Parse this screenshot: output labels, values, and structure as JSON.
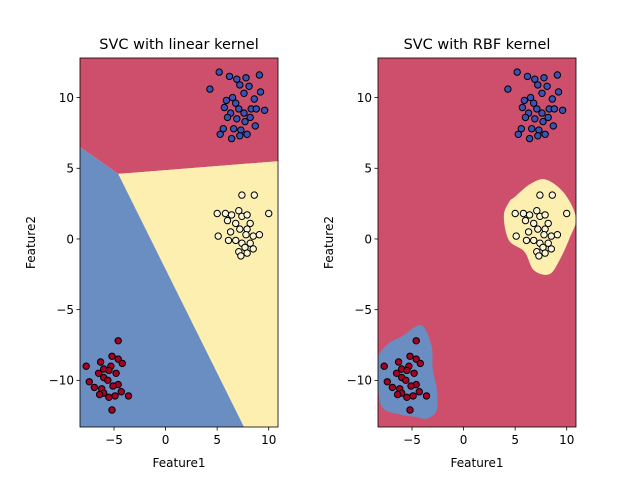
{
  "chart_data": [
    {
      "type": "scatter",
      "title": "SVC with linear kernel",
      "xlabel": "Feature1",
      "ylabel": "Feature2",
      "xlim": [
        -8.3,
        10.9
      ],
      "ylim": [
        -13.3,
        12.8
      ],
      "xticks": [
        -5,
        0,
        5,
        10
      ],
      "yticks": [
        10,
        5,
        0,
        -5,
        -10
      ],
      "xtick_labels": [
        "−5",
        "0",
        "5",
        "10"
      ],
      "ytick_labels": [
        "10",
        "5",
        "0",
        "−5",
        "−10"
      ],
      "regions": [
        {
          "class": "red",
          "polygon": [
            [
              -8.3,
              12.8
            ],
            [
              10.9,
              12.8
            ],
            [
              10.9,
              5.5
            ],
            [
              -4.6,
              4.6
            ],
            [
              -8.3,
              6.5
            ]
          ]
        },
        {
          "class": "yellow",
          "polygon": [
            [
              -4.6,
              4.6
            ],
            [
              10.9,
              5.5
            ],
            [
              10.9,
              -13.3
            ],
            [
              7.6,
              -13.3
            ]
          ]
        },
        {
          "class": "blue",
          "polygon": [
            [
              -8.3,
              6.5
            ],
            [
              -4.6,
              4.6
            ],
            [
              7.6,
              -13.3
            ],
            [
              -8.3,
              -13.3
            ]
          ]
        }
      ],
      "series": [
        {
          "class": "blue",
          "points": [
            [
              5.2,
              11.8
            ],
            [
              6.2,
              11.5
            ],
            [
              6.9,
              11.3
            ],
            [
              7.8,
              11.4
            ],
            [
              9.1,
              11.6
            ],
            [
              4.3,
              10.6
            ],
            [
              7.2,
              10.9
            ],
            [
              8.1,
              10.8
            ],
            [
              9.2,
              10.4
            ],
            [
              6.5,
              10.0
            ],
            [
              7.6,
              10.3
            ],
            [
              8.6,
              9.9
            ],
            [
              6.8,
              9.6
            ],
            [
              7.1,
              9.2
            ],
            [
              5.7,
              9.3
            ],
            [
              6.3,
              8.9
            ],
            [
              7.6,
              8.9
            ],
            [
              8.3,
              9.2
            ],
            [
              8.8,
              9.2
            ],
            [
              9.6,
              9.1
            ],
            [
              6.0,
              8.6
            ],
            [
              6.9,
              8.5
            ],
            [
              7.7,
              8.3
            ],
            [
              8.2,
              8.6
            ],
            [
              5.6,
              7.8
            ],
            [
              6.6,
              7.8
            ],
            [
              7.3,
              7.7
            ],
            [
              7.9,
              7.4
            ],
            [
              5.3,
              7.4
            ],
            [
              6.4,
              7.1
            ],
            [
              7.2,
              7.3
            ],
            [
              5.9,
              9.8
            ],
            [
              8.7,
              8.0
            ]
          ]
        },
        {
          "class": "yellow",
          "points": [
            [
              7.4,
              3.1
            ],
            [
              8.6,
              3.1
            ],
            [
              5.0,
              1.8
            ],
            [
              5.8,
              1.8
            ],
            [
              6.4,
              1.7
            ],
            [
              7.1,
              2.0
            ],
            [
              7.4,
              1.6
            ],
            [
              6.0,
              1.3
            ],
            [
              7.9,
              1.7
            ],
            [
              10.0,
              1.8
            ],
            [
              6.8,
              1.1
            ],
            [
              8.2,
              1.1
            ],
            [
              7.9,
              0.7
            ],
            [
              6.3,
              0.5
            ],
            [
              7.2,
              0.7
            ],
            [
              7.8,
              0.3
            ],
            [
              8.5,
              0.2
            ],
            [
              9.1,
              0.3
            ],
            [
              5.1,
              0.2
            ],
            [
              6.1,
              -0.1
            ],
            [
              6.8,
              -0.1
            ],
            [
              7.4,
              -0.3
            ],
            [
              7.7,
              -0.6
            ],
            [
              8.2,
              -0.3
            ],
            [
              7.1,
              -0.9
            ],
            [
              7.3,
              -1.2
            ],
            [
              7.9,
              -1.0
            ],
            [
              8.5,
              -0.7
            ]
          ]
        },
        {
          "class": "red",
          "points": [
            [
              -4.6,
              -7.2
            ],
            [
              -5.2,
              -8.3
            ],
            [
              -4.6,
              -8.5
            ],
            [
              -6.3,
              -8.7
            ],
            [
              -4.2,
              -8.8
            ],
            [
              -5.3,
              -9.0
            ],
            [
              -7.7,
              -9.0
            ],
            [
              -6.0,
              -9.2
            ],
            [
              -5.5,
              -9.3
            ],
            [
              -4.8,
              -9.5
            ],
            [
              -6.5,
              -9.5
            ],
            [
              -6.0,
              -9.8
            ],
            [
              -7.4,
              -10.1
            ],
            [
              -5.6,
              -10.0
            ],
            [
              -4.6,
              -10.3
            ],
            [
              -6.9,
              -10.5
            ],
            [
              -6.2,
              -10.6
            ],
            [
              -5.1,
              -10.4
            ],
            [
              -6.0,
              -10.9
            ],
            [
              -6.4,
              -11.0
            ],
            [
              -4.3,
              -10.8
            ],
            [
              -5.5,
              -11.2
            ],
            [
              -4.9,
              -11.1
            ],
            [
              -3.6,
              -11.1
            ],
            [
              -5.2,
              -12.1
            ]
          ]
        }
      ]
    },
    {
      "type": "scatter",
      "title": "SVC with RBF kernel",
      "xlabel": "Feature1",
      "ylabel": "Feature2",
      "xlim": [
        -8.3,
        10.9
      ],
      "ylim": [
        -13.3,
        12.8
      ],
      "xticks": [
        -5,
        0,
        5,
        10
      ],
      "yticks": [
        10,
        5,
        0,
        -5,
        -10
      ],
      "xtick_labels": [
        "−5",
        "0",
        "5",
        "10"
      ],
      "ytick_labels": [
        "10",
        "5",
        "0",
        "−5",
        "−10"
      ],
      "regions": [
        {
          "class": "red",
          "background": true
        },
        {
          "class": "yellow",
          "polygon": [
            [
              5.0,
              3.0
            ],
            [
              6.5,
              3.9
            ],
            [
              8.0,
              4.2
            ],
            [
              9.8,
              3.2
            ],
            [
              10.9,
              1.5
            ],
            [
              10.3,
              0.1
            ],
            [
              9.3,
              -1.5
            ],
            [
              8.3,
              -2.5
            ],
            [
              6.8,
              -2.2
            ],
            [
              5.9,
              -0.9
            ],
            [
              4.4,
              -0.1
            ],
            [
              3.9,
              1.6
            ],
            [
              4.4,
              2.6
            ]
          ]
        },
        {
          "class": "blue",
          "polygon": [
            [
              -6.0,
              -6.9
            ],
            [
              -4.1,
              -6.1
            ],
            [
              -3.1,
              -7.6
            ],
            [
              -3.0,
              -9.2
            ],
            [
              -2.6,
              -10.6
            ],
            [
              -2.6,
              -12.1
            ],
            [
              -3.5,
              -12.7
            ],
            [
              -4.6,
              -12.6
            ],
            [
              -6.3,
              -12.4
            ],
            [
              -7.9,
              -11.9
            ],
            [
              -8.3,
              -10.3
            ],
            [
              -8.3,
              -8.4
            ],
            [
              -7.3,
              -7.4
            ]
          ]
        }
      ],
      "series": [
        {
          "class": "blue",
          "points": [
            [
              5.2,
              11.8
            ],
            [
              6.2,
              11.5
            ],
            [
              6.9,
              11.3
            ],
            [
              7.8,
              11.4
            ],
            [
              9.1,
              11.6
            ],
            [
              4.3,
              10.6
            ],
            [
              7.2,
              10.9
            ],
            [
              8.1,
              10.8
            ],
            [
              9.2,
              10.4
            ],
            [
              6.5,
              10.0
            ],
            [
              7.6,
              10.3
            ],
            [
              8.6,
              9.9
            ],
            [
              6.8,
              9.6
            ],
            [
              7.1,
              9.2
            ],
            [
              5.7,
              9.3
            ],
            [
              6.3,
              8.9
            ],
            [
              7.6,
              8.9
            ],
            [
              8.3,
              9.2
            ],
            [
              8.8,
              9.2
            ],
            [
              9.6,
              9.1
            ],
            [
              6.0,
              8.6
            ],
            [
              6.9,
              8.5
            ],
            [
              7.7,
              8.3
            ],
            [
              8.2,
              8.6
            ],
            [
              5.6,
              7.8
            ],
            [
              6.6,
              7.8
            ],
            [
              7.3,
              7.7
            ],
            [
              7.9,
              7.4
            ],
            [
              5.3,
              7.4
            ],
            [
              6.4,
              7.1
            ],
            [
              7.2,
              7.3
            ],
            [
              5.9,
              9.8
            ],
            [
              8.7,
              8.0
            ]
          ]
        },
        {
          "class": "yellow",
          "points": [
            [
              7.4,
              3.1
            ],
            [
              8.6,
              3.1
            ],
            [
              5.0,
              1.8
            ],
            [
              5.8,
              1.8
            ],
            [
              6.4,
              1.7
            ],
            [
              7.1,
              2.0
            ],
            [
              7.4,
              1.6
            ],
            [
              6.0,
              1.3
            ],
            [
              7.9,
              1.7
            ],
            [
              10.0,
              1.8
            ],
            [
              6.8,
              1.1
            ],
            [
              8.2,
              1.1
            ],
            [
              7.9,
              0.7
            ],
            [
              6.3,
              0.5
            ],
            [
              7.2,
              0.7
            ],
            [
              7.8,
              0.3
            ],
            [
              8.5,
              0.2
            ],
            [
              9.1,
              0.3
            ],
            [
              5.1,
              0.2
            ],
            [
              6.1,
              -0.1
            ],
            [
              6.8,
              -0.1
            ],
            [
              7.4,
              -0.3
            ],
            [
              7.7,
              -0.6
            ],
            [
              8.2,
              -0.3
            ],
            [
              7.1,
              -0.9
            ],
            [
              7.3,
              -1.2
            ],
            [
              7.9,
              -1.0
            ],
            [
              8.5,
              -0.7
            ]
          ]
        },
        {
          "class": "red",
          "points": [
            [
              -4.6,
              -7.2
            ],
            [
              -5.2,
              -8.3
            ],
            [
              -4.6,
              -8.5
            ],
            [
              -6.3,
              -8.7
            ],
            [
              -4.2,
              -8.8
            ],
            [
              -5.3,
              -9.0
            ],
            [
              -7.7,
              -9.0
            ],
            [
              -6.0,
              -9.2
            ],
            [
              -5.5,
              -9.3
            ],
            [
              -4.8,
              -9.5
            ],
            [
              -6.5,
              -9.5
            ],
            [
              -6.0,
              -9.8
            ],
            [
              -7.4,
              -10.1
            ],
            [
              -5.6,
              -10.0
            ],
            [
              -4.6,
              -10.3
            ],
            [
              -6.9,
              -10.5
            ],
            [
              -6.2,
              -10.6
            ],
            [
              -5.1,
              -10.4
            ],
            [
              -6.0,
              -10.9
            ],
            [
              -6.4,
              -11.0
            ],
            [
              -4.3,
              -10.8
            ],
            [
              -5.5,
              -11.2
            ],
            [
              -4.9,
              -11.1
            ],
            [
              -3.6,
              -11.1
            ],
            [
              -5.2,
              -12.1
            ]
          ]
        }
      ]
    }
  ],
  "colors": {
    "region_red": "#cd4f6b",
    "region_yellow": "#fdefb0",
    "region_blue": "#6a8ec2",
    "point_red": "#a50026",
    "point_yellow": "#fbf6d8",
    "point_blue": "#3b52b6",
    "point_edge": "#000000"
  }
}
